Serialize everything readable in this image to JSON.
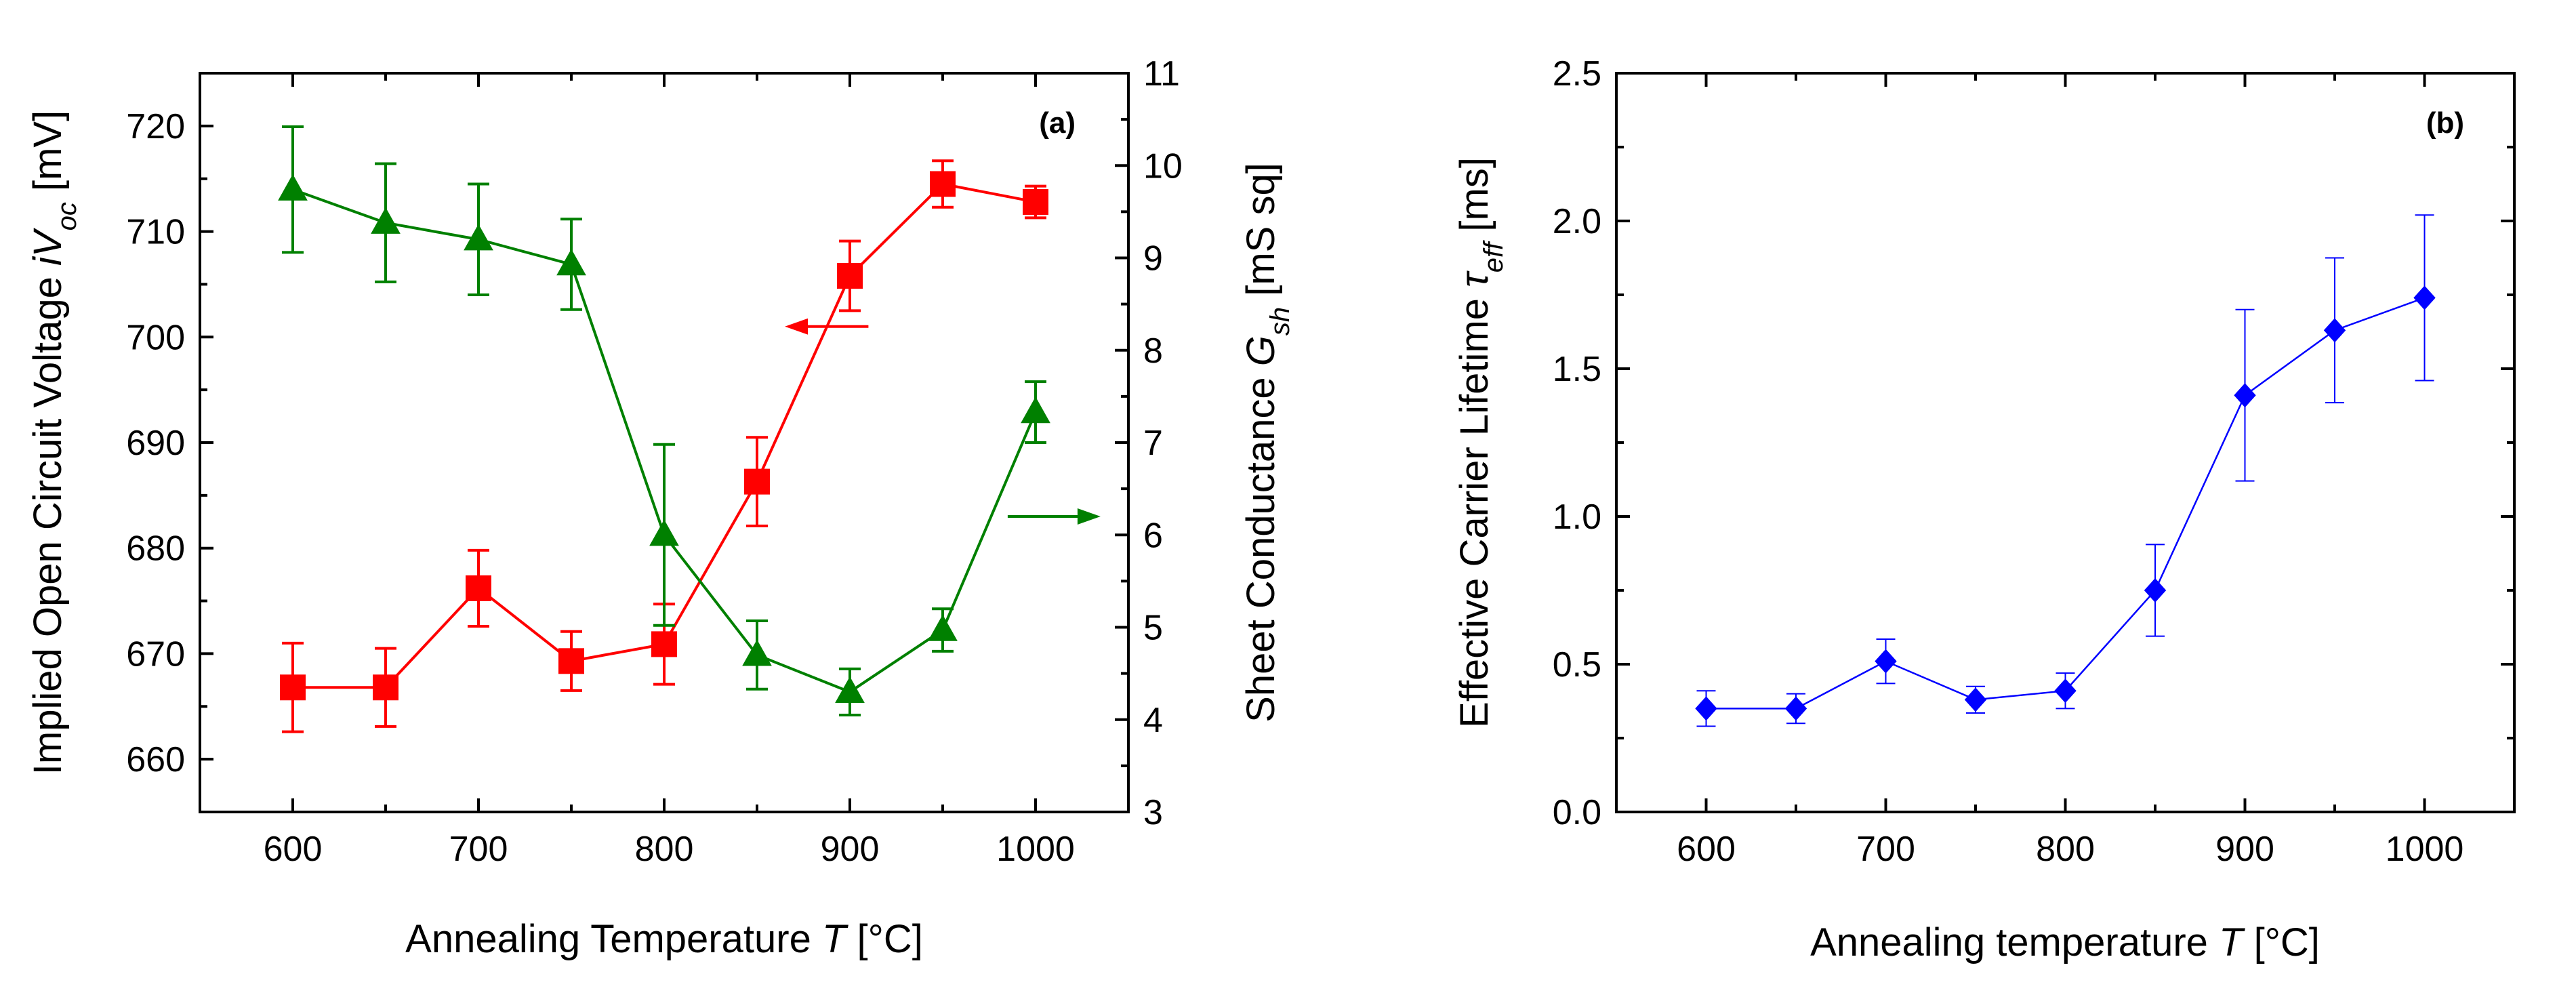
{
  "chart_data": [
    {
      "type": "line",
      "panel_label": "(a)",
      "xlabel": "Annealing Temperature",
      "xlabel_var": "T",
      "xlabel_unit": "[°C]",
      "ylabel_left": "Implied Open Circuit Voltage",
      "ylabel_left_var": "iV",
      "ylabel_left_sub": "oc",
      "ylabel_left_unit": "[mV]",
      "ylabel_right": "Sheet Conductance",
      "ylabel_right_var": "G",
      "ylabel_right_sub": "sh",
      "ylabel_right_unit": "[mS sq]",
      "xlim": [
        550,
        1050
      ],
      "ylim_left": [
        655,
        725
      ],
      "ylim_right": [
        3,
        11
      ],
      "x_ticks": [
        600,
        700,
        800,
        900,
        1000
      ],
      "y_ticks_left": [
        660,
        670,
        680,
        690,
        700,
        710,
        720
      ],
      "y_ticks_right": [
        3,
        4,
        5,
        6,
        7,
        8,
        9,
        10,
        11
      ],
      "grid": false,
      "legend": "none",
      "series": [
        {
          "axis": "left",
          "color": "#ff0000",
          "marker": "square",
          "x": [
            600,
            650,
            700,
            750,
            800,
            850,
            900,
            950,
            1000
          ],
          "y": [
            666.8,
            666.8,
            676.2,
            669.3,
            670.9,
            686.3,
            705.8,
            714.5,
            712.8
          ],
          "err": [
            4.2,
            3.7,
            3.6,
            2.8,
            3.8,
            4.2,
            3.3,
            2.2,
            1.5
          ]
        },
        {
          "axis": "right",
          "color": "#008000",
          "marker": "triangle",
          "x": [
            600,
            650,
            700,
            750,
            800,
            850,
            900,
            950,
            1000
          ],
          "y": [
            9.74,
            9.38,
            9.2,
            8.93,
            6.0,
            4.7,
            4.3,
            4.97,
            7.33
          ],
          "err": [
            0.68,
            0.64,
            0.6,
            0.49,
            0.98,
            0.37,
            0.25,
            0.23,
            0.33
          ]
        }
      ],
      "annotations": [
        {
          "type": "arrow",
          "direction": "left",
          "points_to_axis": "left",
          "color": "#ff0000",
          "x_from": 910,
          "x_to": 865,
          "y_left": 701
        },
        {
          "type": "arrow",
          "direction": "right",
          "points_to_axis": "right",
          "color": "#008000",
          "x_from": 985,
          "x_to": 1035,
          "y_right": 6.2
        }
      ]
    },
    {
      "type": "line",
      "panel_label": "(b)",
      "xlabel": "Annealing temperature",
      "xlabel_var": "T",
      "xlabel_unit": "[°C]",
      "ylabel": "Effective Carrier Lifetime",
      "ylabel_var": "τ",
      "ylabel_sub": "eff",
      "ylabel_unit": "[ms]",
      "xlim": [
        550,
        1050
      ],
      "ylim": [
        0,
        2.5
      ],
      "x_ticks": [
        600,
        700,
        800,
        900,
        1000
      ],
      "y_ticks": [
        "0.0",
        "0.5",
        "1.0",
        "1.5",
        "2.0",
        "2.5"
      ],
      "grid": false,
      "legend": "none",
      "series": [
        {
          "color": "#0000ff",
          "marker": "diamond",
          "x": [
            600,
            650,
            700,
            750,
            800,
            850,
            900,
            950,
            1000
          ],
          "y": [
            0.35,
            0.35,
            0.51,
            0.38,
            0.41,
            0.75,
            1.41,
            1.63,
            1.74
          ],
          "err": [
            0.06,
            0.05,
            0.075,
            0.045,
            0.06,
            0.155,
            0.29,
            0.245,
            0.28
          ]
        }
      ]
    }
  ]
}
